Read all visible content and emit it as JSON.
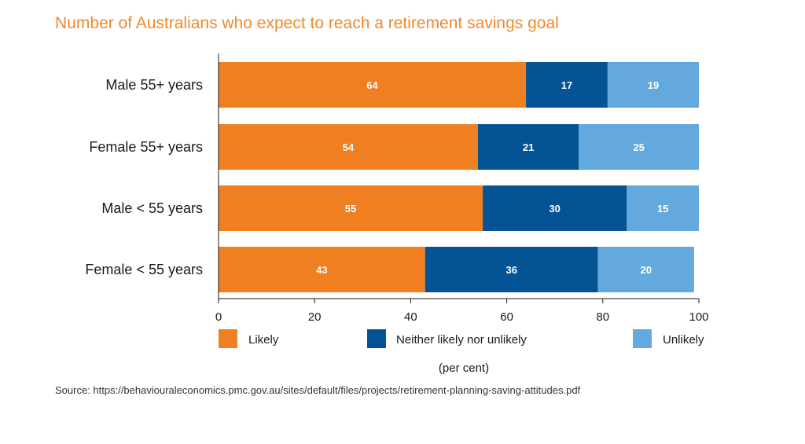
{
  "title": "Number of Australians who expect to reach a retirement savings goal",
  "source": "Source: https://behaviouraleconomics.pmc.gov.au/sites/default/files/projects/retirement-planning-saving-attitudes.pdf",
  "chart_data": {
    "type": "bar",
    "orientation": "horizontal",
    "stacked": true,
    "categories": [
      "Male 55+ years",
      "Female 55+ years",
      "Male < 55 years",
      "Female < 55 years"
    ],
    "series": [
      {
        "name": "Likely",
        "values": [
          64,
          54,
          55,
          43
        ],
        "color": "#f07f22"
      },
      {
        "name": "Neither likely nor unlikely",
        "values": [
          17,
          21,
          30,
          36
        ],
        "color": "#045495"
      },
      {
        "name": "Unlikely",
        "values": [
          19,
          25,
          15,
          20
        ],
        "color": "#64a9de"
      }
    ],
    "xlabel": "(per cent)",
    "xlim": [
      0,
      100
    ],
    "xticks": [
      0,
      20,
      40,
      60,
      80,
      100
    ],
    "grid": false,
    "legend": "bottom"
  }
}
